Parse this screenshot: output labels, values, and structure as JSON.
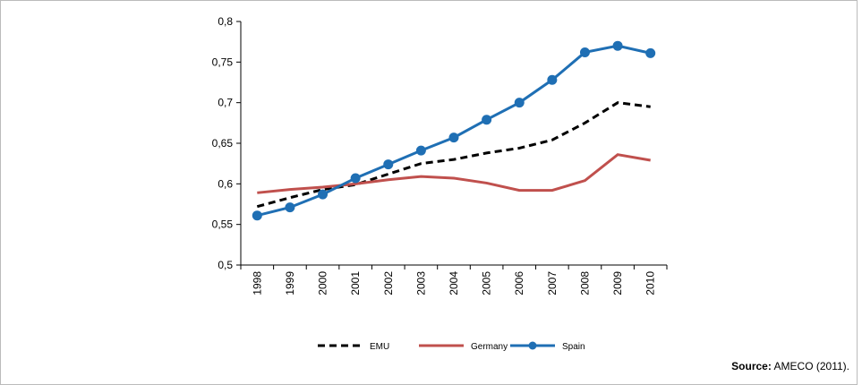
{
  "chart_data": {
    "type": "line",
    "categories": [
      "1998",
      "1999",
      "2000",
      "2001",
      "2002",
      "2003",
      "2004",
      "2005",
      "2006",
      "2007",
      "2008",
      "2009",
      "2010"
    ],
    "series": [
      {
        "name": "EMU",
        "color": "#000000",
        "style": "dashed",
        "values": [
          0.572,
          0.583,
          0.593,
          0.599,
          0.612,
          0.625,
          0.63,
          0.638,
          0.644,
          0.654,
          0.675,
          0.7,
          0.695
        ]
      },
      {
        "name": "Germany",
        "color": "#c0504d",
        "style": "solid",
        "values": [
          0.589,
          0.593,
          0.596,
          0.6,
          0.605,
          0.609,
          0.607,
          0.601,
          0.592,
          0.592,
          0.604,
          0.636,
          0.629
        ]
      },
      {
        "name": "Spain",
        "color": "#1f6fb4",
        "style": "solid",
        "markers": true,
        "values": [
          0.561,
          0.571,
          0.587,
          0.607,
          0.624,
          0.641,
          0.657,
          0.679,
          0.7,
          0.728,
          0.762,
          0.77,
          0.761
        ]
      }
    ],
    "ylim": [
      0.5,
      0.8
    ],
    "yticks": [
      {
        "value": 0.5,
        "label": "0,5"
      },
      {
        "value": 0.55,
        "label": "0,55"
      },
      {
        "value": 0.6,
        "label": "0,6"
      },
      {
        "value": 0.65,
        "label": "0,65"
      },
      {
        "value": 0.7,
        "label": "0,7"
      },
      {
        "value": 0.75,
        "label": "0,75"
      },
      {
        "value": 0.8,
        "label": "0,8"
      }
    ],
    "legend": "bottom",
    "source_label": "Source:",
    "source": "AMECO (2011)."
  }
}
